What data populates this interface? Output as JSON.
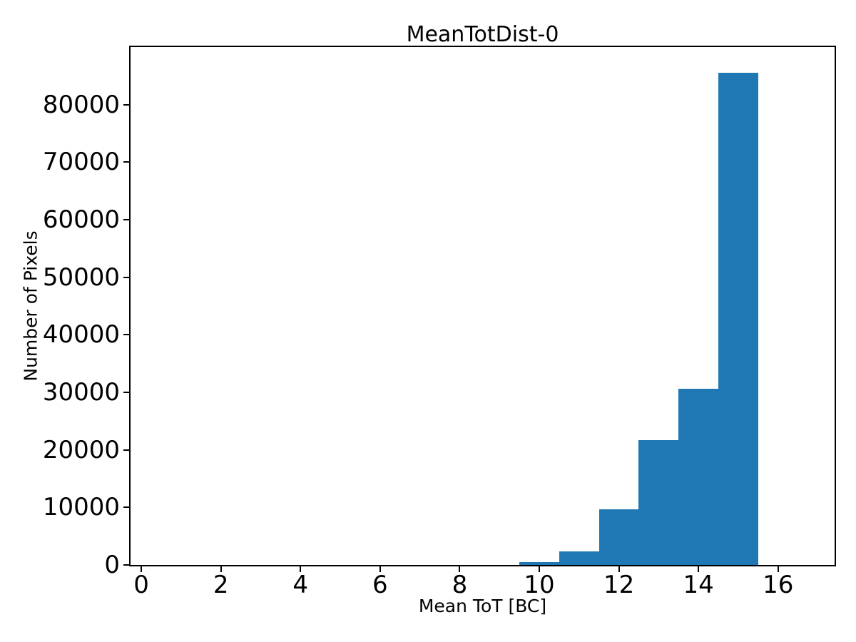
{
  "colors": {
    "bar": "#1f77b4",
    "axis": "#000000",
    "background": "#ffffff",
    "text": "#000000"
  },
  "chart_data": {
    "type": "bar",
    "title": "MeanTotDist-0",
    "xlabel": "Mean ToT [BC]",
    "ylabel": "Number of Pixels",
    "bin_edges": [
      9.5,
      10.5,
      11.5,
      12.5,
      13.5,
      14.5,
      15.5
    ],
    "values": [
      550,
      2400,
      9650,
      21700,
      30600,
      85500
    ],
    "xlim": [
      -0.27,
      17.42
    ],
    "ylim": [
      0,
      90000
    ],
    "xticks": [
      0,
      2,
      4,
      6,
      8,
      10,
      12,
      14,
      16
    ],
    "yticks": [
      0,
      10000,
      20000,
      30000,
      40000,
      50000,
      60000,
      70000,
      80000
    ],
    "grid": false,
    "legend": null,
    "bar_color": "#1f77b4"
  }
}
